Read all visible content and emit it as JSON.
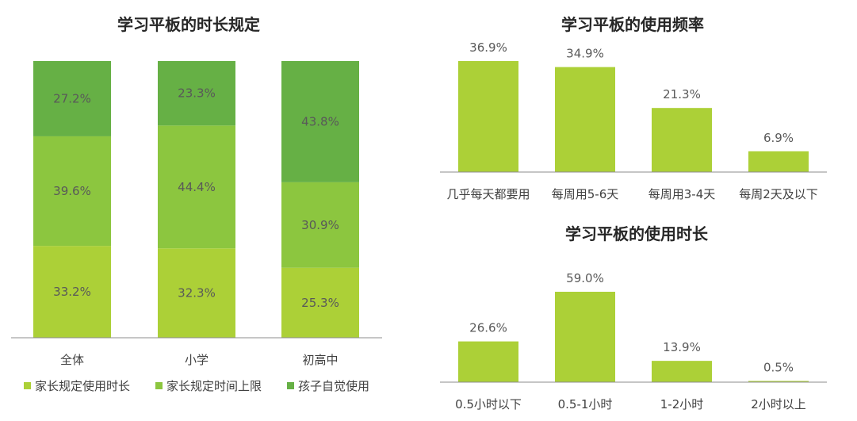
{
  "colors": {
    "lime": "#acd037",
    "mid_green": "#8cc63f",
    "dark_green": "#66b045",
    "axis": "#7f7f7f"
  },
  "chart_data": [
    {
      "type": "bar",
      "stacked": true,
      "title": "学习平板的时长规定",
      "categories": [
        "全体",
        "小学",
        "初高中"
      ],
      "ylim": [
        0,
        100
      ],
      "series": [
        {
          "name": "家长规定使用时长",
          "color": "#acd037",
          "values": [
            33.2,
            32.3,
            25.3
          ],
          "labels": [
            "33.2%",
            "32.3%",
            "25.3%"
          ]
        },
        {
          "name": "家长规定时间上限",
          "color": "#8cc63f",
          "values": [
            39.6,
            44.4,
            30.9
          ],
          "labels": [
            "39.6%",
            "44.4%",
            "30.9%"
          ]
        },
        {
          "name": "孩子自觉使用",
          "color": "#66b045",
          "values": [
            27.2,
            23.3,
            43.8
          ],
          "labels": [
            "27.2%",
            "23.3%",
            "43.8%"
          ]
        }
      ],
      "legend": "bottom"
    },
    {
      "type": "bar",
      "title": "学习平板的使用频率",
      "categories": [
        "几乎每天都要用",
        "每周用5-6天",
        "每周用3-4天",
        "每周2天及以下"
      ],
      "values": [
        36.9,
        34.9,
        21.3,
        6.9
      ],
      "labels": [
        "36.9%",
        "34.9%",
        "21.3%",
        "6.9%"
      ],
      "ylim": [
        0,
        36.9
      ]
    },
    {
      "type": "bar",
      "title": "学习平板的使用时长",
      "categories": [
        "0.5小时以下",
        "0.5-1小时",
        "1-2小时",
        "2小时以上"
      ],
      "values": [
        26.6,
        59.0,
        13.9,
        0.5
      ],
      "labels": [
        "26.6%",
        "59.0%",
        "13.9%",
        "0.5%"
      ],
      "ylim": [
        0,
        59.0
      ]
    }
  ]
}
